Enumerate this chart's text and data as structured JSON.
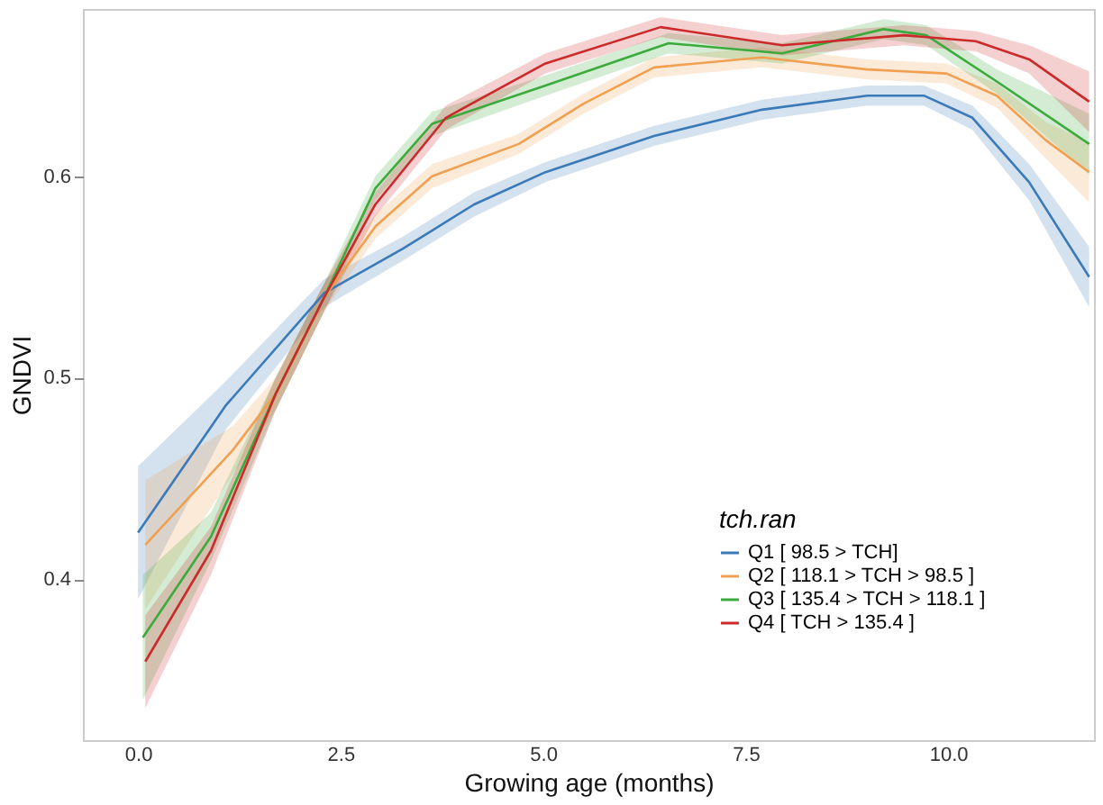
{
  "chart_data": {
    "type": "line",
    "xlabel": "Growing age (months)",
    "ylabel": "GNDVI",
    "legend_title": "tch.ran",
    "legend": "bottom right",
    "grid": false,
    "xlim": [
      -0.68,
      11.8
    ],
    "ylim": [
      0.32,
      0.683
    ],
    "xticks": [
      {
        "value": 0,
        "label": "0.0"
      },
      {
        "value": 2.5,
        "label": "2.5"
      },
      {
        "value": 5,
        "label": "5.0"
      },
      {
        "value": 7.5,
        "label": "7.5"
      },
      {
        "value": 10,
        "label": "10.0"
      }
    ],
    "yticks": [
      0.4,
      0.5,
      0.6
    ],
    "series": [
      {
        "name": "Q1 [ 98.5 > TCH]",
        "color": "#3a7ab8",
        "x": [
          0,
          1.08,
          2.3,
          3.27,
          4.15,
          5.03,
          6.37,
          7.7,
          9.0,
          9.7,
          10.3,
          11.0,
          11.74
        ],
        "values": [
          0.423,
          0.486,
          0.542,
          0.564,
          0.586,
          0.602,
          0.62,
          0.633,
          0.64,
          0.64,
          0.629,
          0.597,
          0.55
        ],
        "lower": [
          0.39,
          0.474,
          0.535,
          0.558,
          0.58,
          0.597,
          0.615,
          0.628,
          0.635,
          0.635,
          0.623,
          0.588,
          0.535
        ],
        "upper": [
          0.456,
          0.498,
          0.549,
          0.57,
          0.592,
          0.607,
          0.625,
          0.638,
          0.645,
          0.645,
          0.635,
          0.606,
          0.565
        ]
      },
      {
        "name": "Q2 [ 118.1 > TCH > 98.5 ]",
        "color": "#f0a050",
        "x": [
          0.09,
          1.17,
          1.7,
          2.3,
          2.93,
          3.63,
          4.7,
          5.5,
          6.37,
          7.7,
          9.0,
          9.98,
          10.6,
          11.2,
          11.74
        ],
        "values": [
          0.417,
          0.464,
          0.492,
          0.54,
          0.575,
          0.6,
          0.616,
          0.636,
          0.654,
          0.659,
          0.653,
          0.651,
          0.64,
          0.618,
          0.602
        ],
        "lower": [
          0.385,
          0.452,
          0.484,
          0.533,
          0.569,
          0.594,
          0.611,
          0.631,
          0.649,
          0.654,
          0.648,
          0.646,
          0.634,
          0.609,
          0.587
        ],
        "upper": [
          0.449,
          0.476,
          0.5,
          0.547,
          0.581,
          0.606,
          0.621,
          0.641,
          0.659,
          0.664,
          0.658,
          0.656,
          0.646,
          0.627,
          0.617
        ]
      },
      {
        "name": "Q3 [ 135.4 > TCH > 118.1 ]",
        "color": "#3caa3c",
        "x": [
          0.06,
          0.9,
          1.7,
          2.3,
          2.93,
          3.63,
          5.03,
          6.55,
          7.95,
          9.2,
          9.73,
          10.6,
          11.74
        ],
        "values": [
          0.371,
          0.421,
          0.492,
          0.54,
          0.594,
          0.626,
          0.645,
          0.666,
          0.661,
          0.673,
          0.67,
          0.647,
          0.616
        ],
        "lower": [
          0.34,
          0.409,
          0.484,
          0.533,
          0.588,
          0.62,
          0.64,
          0.661,
          0.656,
          0.668,
          0.665,
          0.641,
          0.601
        ],
        "upper": [
          0.402,
          0.433,
          0.5,
          0.547,
          0.6,
          0.632,
          0.65,
          0.671,
          0.666,
          0.678,
          0.675,
          0.653,
          0.631
        ]
      },
      {
        "name": "Q4 [ TCH > 135.4 ]",
        "color": "#cc2a2a",
        "x": [
          0.09,
          0.9,
          1.7,
          2.3,
          2.93,
          3.8,
          5.03,
          6.45,
          7.95,
          9.45,
          10.34,
          11.0,
          11.74
        ],
        "values": [
          0.359,
          0.414,
          0.492,
          0.54,
          0.586,
          0.629,
          0.656,
          0.674,
          0.665,
          0.67,
          0.667,
          0.658,
          0.637
        ],
        "lower": [
          0.336,
          0.402,
          0.484,
          0.533,
          0.58,
          0.623,
          0.651,
          0.669,
          0.66,
          0.665,
          0.662,
          0.651,
          0.622
        ],
        "upper": [
          0.382,
          0.426,
          0.5,
          0.547,
          0.592,
          0.635,
          0.661,
          0.679,
          0.67,
          0.675,
          0.672,
          0.665,
          0.652
        ]
      }
    ]
  }
}
